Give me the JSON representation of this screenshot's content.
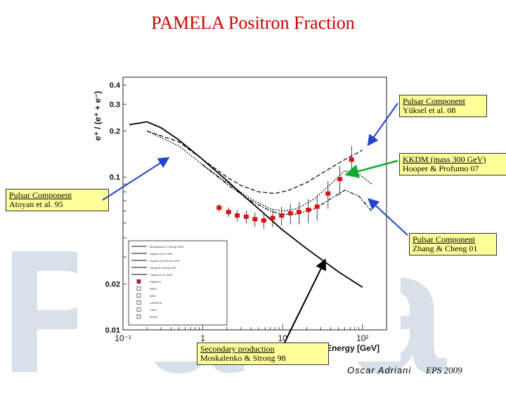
{
  "slide": {
    "title": "PAMELA Positron Fraction",
    "author": "Oscar Adriani",
    "event": "EPS 2009"
  },
  "callouts": {
    "pulsar_yuksel": {
      "line1": "Pulsar Component",
      "line2": "Yüksel et al. 08"
    },
    "kkdm": {
      "line1": "KKDM (mass 300 GeV)",
      "line2": "Hooper & Profumo 07"
    },
    "pulsar_atoyan": {
      "line1": "Pulsar Component",
      "line2": "Atoyan et al. 95"
    },
    "pulsar_zhang": {
      "line1": "Pulsar Component",
      "line2": "Zhang & Cheng 01"
    },
    "secondary": {
      "line1": "Secondary production",
      "line2": "Moskalenko & Strong 98"
    }
  },
  "colors": {
    "title": "#cc0000",
    "callout_bg": "#ffff99",
    "arrow_blue": "#2244cc",
    "arrow_green": "#11aa33",
    "arrow_black": "#000000",
    "pamela_points": "#dd1111",
    "watermark": "#d8e0ea"
  },
  "chart_data": {
    "type": "scatter",
    "xscale": "log",
    "yscale": "log",
    "xlim": [
      0.1,
      200
    ],
    "ylim": [
      0.01,
      0.45
    ],
    "xlabel": "Energy [GeV]",
    "ylabel": "e⁺ / (e⁺ + e⁻)",
    "xticks": [
      {
        "value": 0.1,
        "label": "10⁻¹"
      },
      {
        "value": 1,
        "label": "1"
      },
      {
        "value": 10,
        "label": "10"
      },
      {
        "value": 100,
        "label": "10²"
      }
    ],
    "yticks": [
      {
        "value": 0.4,
        "label": "0.4"
      },
      {
        "value": 0.3,
        "label": "0.3"
      },
      {
        "value": 0.2,
        "label": "0.2"
      },
      {
        "value": 0.1,
        "label": "0.1"
      },
      {
        "value": 0.02,
        "label": "0.02"
      },
      {
        "value": 0.01,
        "label": "0.01"
      }
    ],
    "pamela": {
      "x": [
        1.6,
        2.1,
        2.7,
        3.5,
        4.5,
        5.8,
        7.5,
        9.7,
        12.5,
        16,
        21,
        27,
        37,
        52,
        73
      ],
      "y": [
        0.063,
        0.059,
        0.056,
        0.055,
        0.053,
        0.052,
        0.054,
        0.056,
        0.058,
        0.059,
        0.061,
        0.064,
        0.078,
        0.097,
        0.13
      ]
    },
    "secondary_curve": {
      "x": [
        0.12,
        0.2,
        0.3,
        0.5,
        1,
        2,
        3,
        5,
        10,
        20,
        50,
        100
      ],
      "y": [
        0.22,
        0.23,
        0.21,
        0.175,
        0.13,
        0.095,
        0.078,
        0.062,
        0.045,
        0.034,
        0.024,
        0.019
      ]
    },
    "pulsar_atoyan_curve": {
      "x": [
        0.2,
        0.5,
        1,
        2,
        3,
        5,
        8,
        12,
        20,
        35,
        60,
        100
      ],
      "y": [
        0.2,
        0.17,
        0.13,
        0.1,
        0.088,
        0.08,
        0.078,
        0.082,
        0.092,
        0.11,
        0.13,
        0.15
      ]
    },
    "kkdm_curve": {
      "x": [
        0.2,
        0.5,
        1,
        2,
        4,
        7,
        10,
        15,
        25,
        40,
        60,
        90,
        130
      ],
      "y": [
        0.2,
        0.16,
        0.12,
        0.092,
        0.072,
        0.062,
        0.06,
        0.062,
        0.072,
        0.09,
        0.11,
        0.105,
        0.09
      ]
    },
    "pulsar_zhang_curve": {
      "x": [
        1,
        2,
        4,
        7,
        10,
        15,
        25,
        40,
        60,
        90,
        130
      ],
      "y": [
        0.12,
        0.09,
        0.07,
        0.06,
        0.057,
        0.057,
        0.062,
        0.072,
        0.082,
        0.075,
        0.06
      ]
    },
    "legend": {
      "entries": [
        "Moskalenko & Strong 1998",
        "Atoyan et al. 1995",
        "Hooper & Profumo 2007",
        "Zhang & Cheng 2001",
        "Yüksel et al. 2008",
        "PAMELA",
        "HEAT",
        "AMS",
        "CAPRICE",
        "TS93",
        "MASS"
      ]
    }
  }
}
